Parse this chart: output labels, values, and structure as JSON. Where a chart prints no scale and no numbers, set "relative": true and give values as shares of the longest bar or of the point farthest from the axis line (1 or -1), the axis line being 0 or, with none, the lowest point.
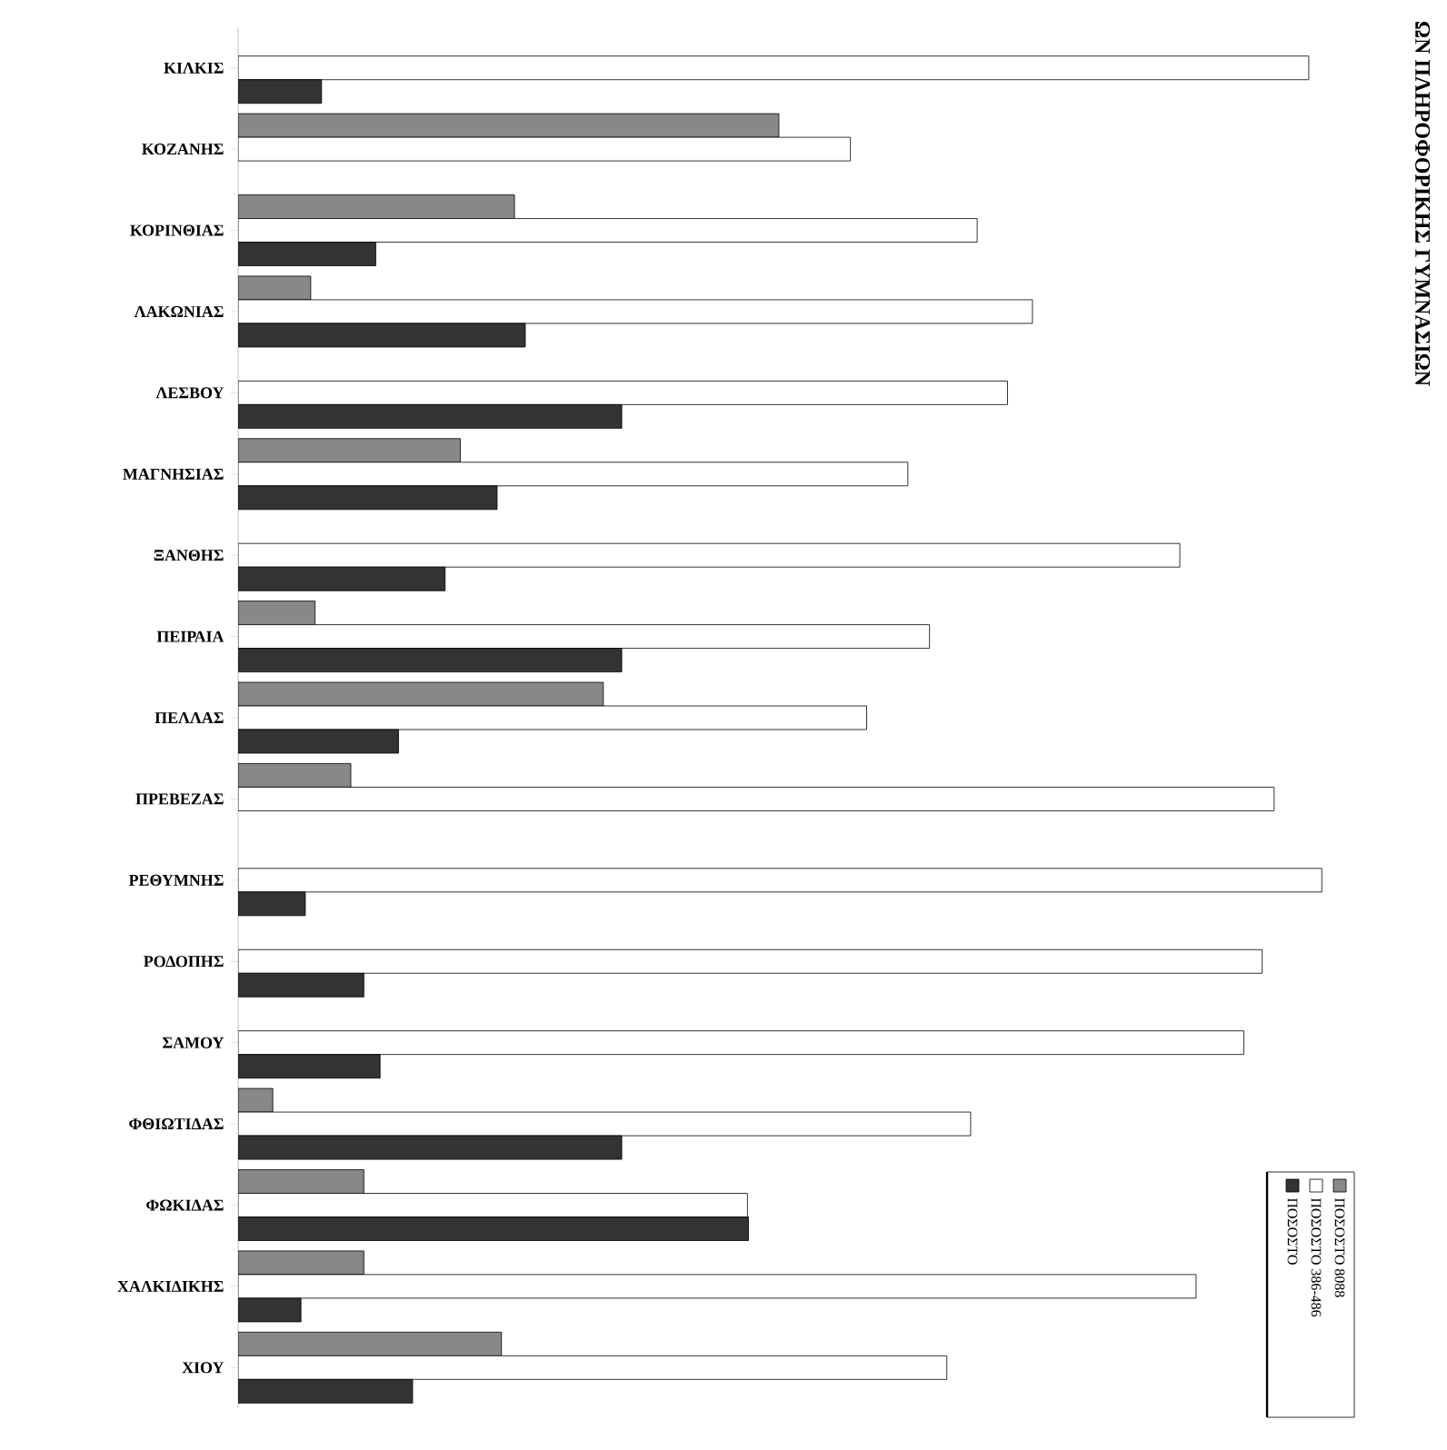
{
  "chart_data": {
    "type": "bar",
    "orientation": "horizontal",
    "relative": true,
    "title": "ΩΝ ΠΛΗΡΟΦΟΡΙΚΗΣ ΓΥΜΝΑΣΙΩΝ",
    "legend": "bottom right",
    "categories": [
      "ΚΙΛΚΙΣ",
      "ΚΟΖΑΝΗΣ",
      "ΚΟΡΙΝΘΙΑΣ",
      "ΛΑΚΩΝΙΑΣ",
      "ΛΕΣΒΟΥ",
      "ΜΑΓΝΗΣΙΑΣ",
      "ΞΑΝΘΗΣ",
      "ΠΕΙΡΑΙΑ",
      "ΠΕΛΛΑΣ",
      "ΠΡΕΒΕΖΑΣ",
      "ΡΕΘΥΜΝΗΣ",
      "ΡΟΔΟΠΗΣ",
      "ΣΑΜΟΥ",
      "ΦΘΙΩΤΙΔΑΣ",
      "ΦΩΚΙΔΑΣ",
      "ΧΑΛΚΙΔΙΚΗΣ",
      "ΧΙΟΥ"
    ],
    "series": [
      {
        "name": "ΠΟΣΟΣΤΟ 8088",
        "color": "#888888",
        "values": [
          null,
          0.499,
          0.255,
          0.067,
          null,
          0.205,
          null,
          0.071,
          0.337,
          0.104,
          null,
          null,
          null,
          0.032,
          0.116,
          0.116,
          0.243
        ]
      },
      {
        "name": "ΠΟΣΟΣΤΟ 386-486",
        "color": "#ffffff",
        "values": [
          0.988,
          0.565,
          0.682,
          0.733,
          0.71,
          0.618,
          0.869,
          0.638,
          0.58,
          0.956,
          1,
          0.945,
          0.928,
          0.676,
          0.47,
          0.884,
          0.654
        ]
      },
      {
        "name": "ΠΟΣΟΣΤΟ",
        "color": "#333333",
        "values": [
          0.077,
          null,
          0.127,
          0.265,
          0.354,
          0.239,
          0.191,
          0.354,
          0.148,
          null,
          0.062,
          0.116,
          0.131,
          0.354,
          0.471,
          0.058,
          0.161
        ]
      }
    ]
  }
}
